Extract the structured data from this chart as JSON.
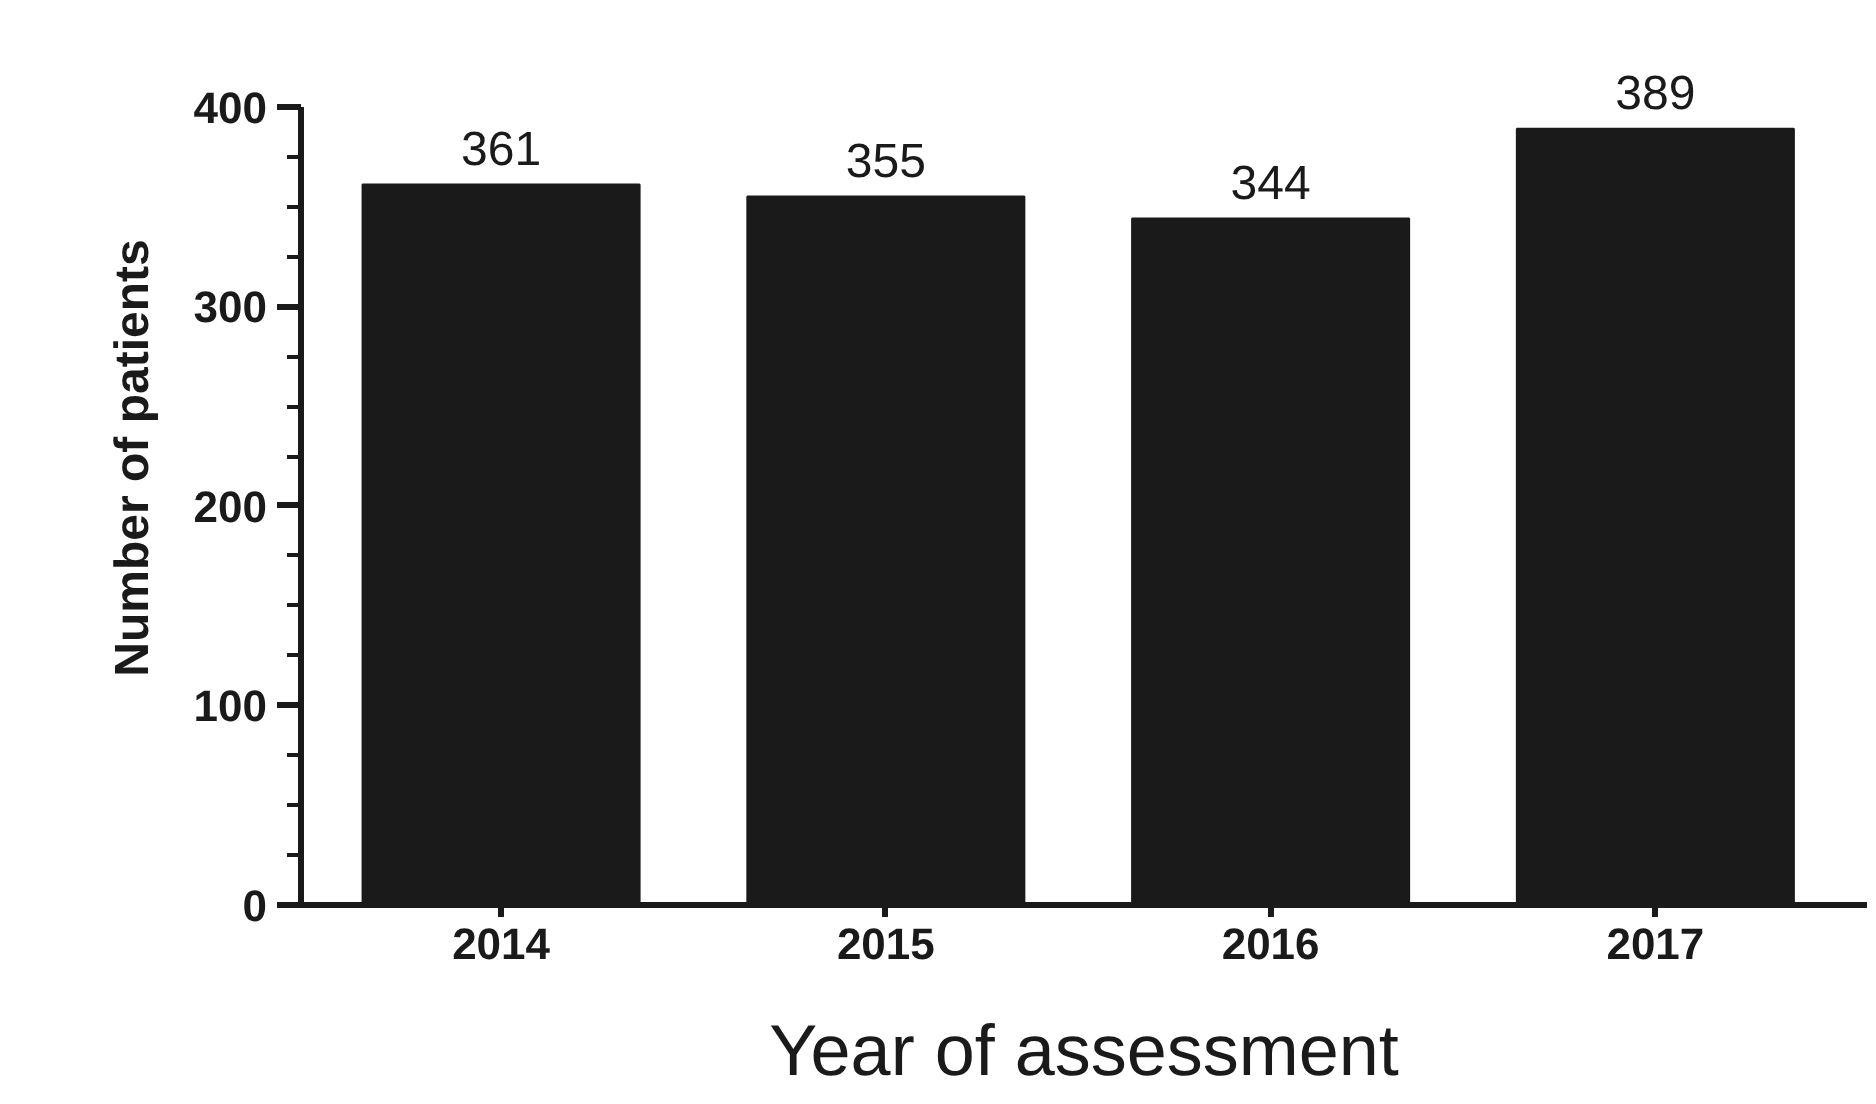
{
  "chart_data": {
    "type": "bar",
    "xlabel": "Year of assessment",
    "ylabel": "Number of patients",
    "categories": [
      "2014",
      "2015",
      "2016",
      "2017"
    ],
    "values": [
      361,
      355,
      344,
      389
    ],
    "color": "#1a1a1a",
    "ylim": [
      0,
      400
    ],
    "yticks": [
      0,
      100,
      200,
      300,
      400
    ],
    "data_labels": true,
    "grid": false
  }
}
